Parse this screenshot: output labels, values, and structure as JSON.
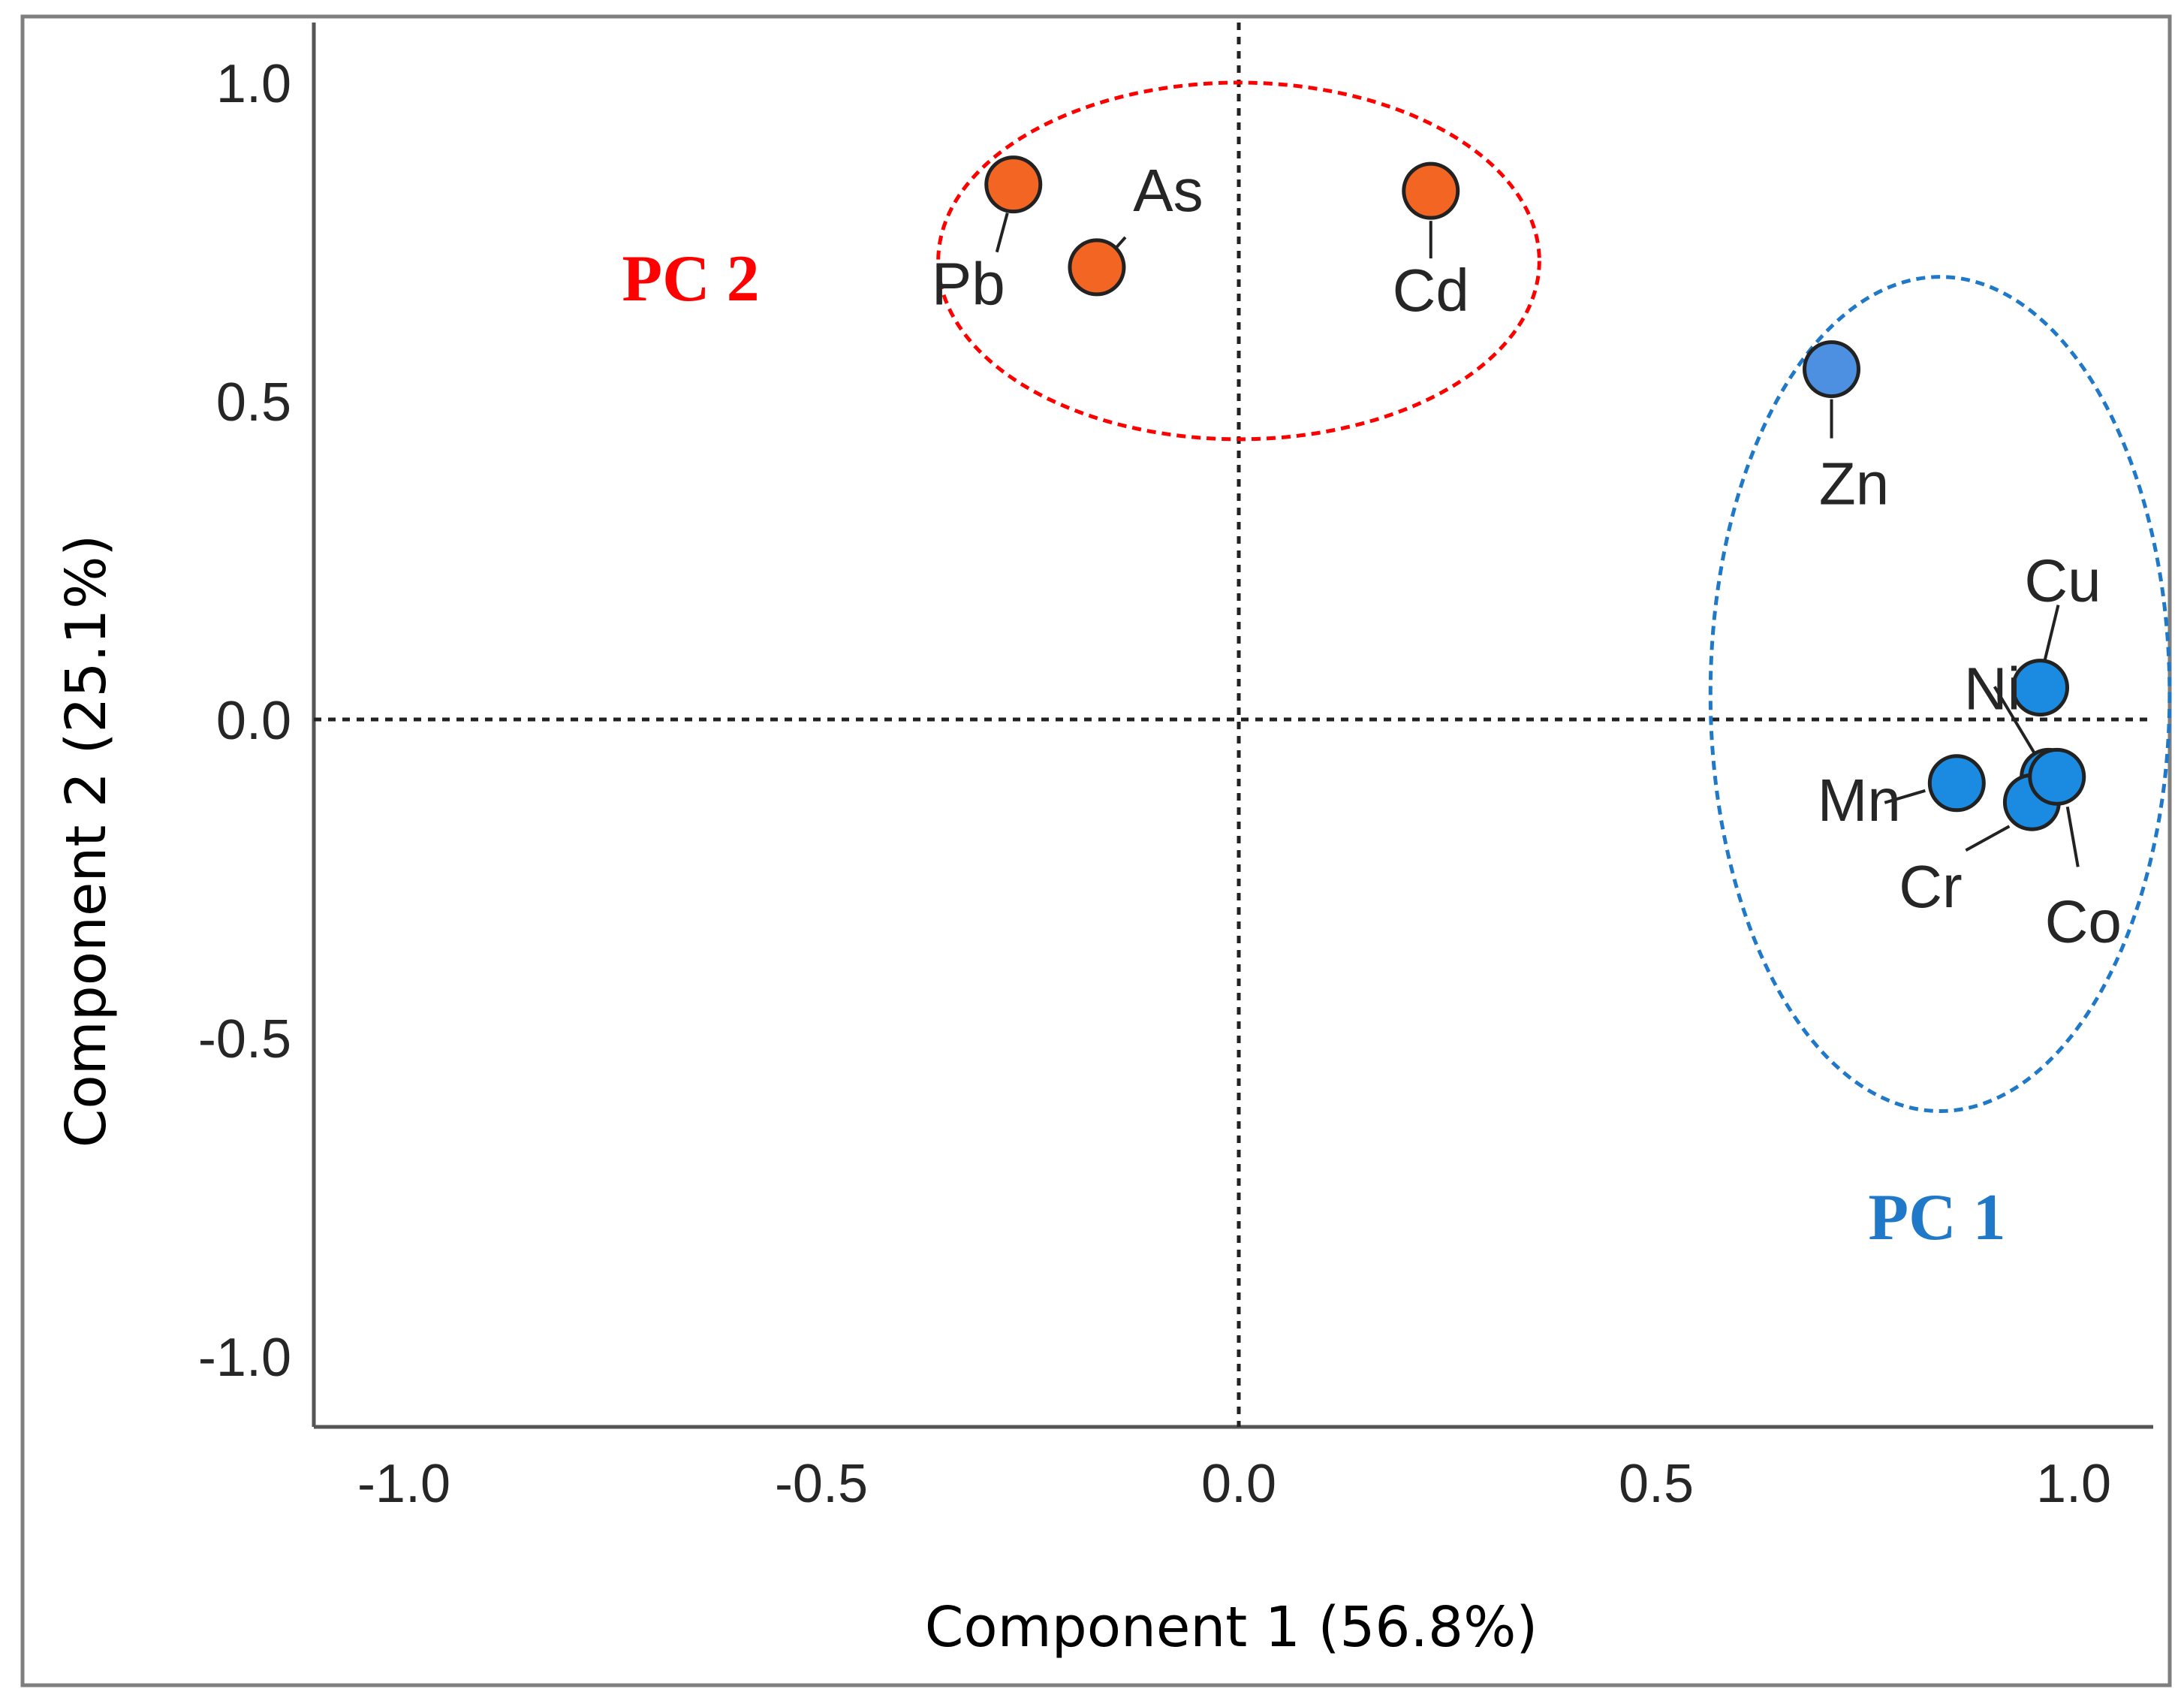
{
  "chart_data": {
    "type": "scatter",
    "title": "",
    "xlabel": "Component 1 (56.8%)",
    "ylabel": "Component 2 (25.1%)",
    "xlim": [
      -1.1,
      1.1
    ],
    "ylim": [
      -1.1,
      1.1
    ],
    "xticks": [
      {
        "value": -1.0,
        "label": "-1.0"
      },
      {
        "value": -0.5,
        "label": "-0.5"
      },
      {
        "value": 0.0,
        "label": "0.0"
      },
      {
        "value": 0.5,
        "label": "0.5"
      },
      {
        "value": 1.0,
        "label": "1.0"
      }
    ],
    "yticks": [
      {
        "value": 1.0,
        "label": "1.0"
      },
      {
        "value": 0.5,
        "label": "0.5"
      },
      {
        "value": 0.0,
        "label": "0.0"
      },
      {
        "value": -0.5,
        "label": "-0.5"
      },
      {
        "value": -1.0,
        "label": "-1.0"
      }
    ],
    "reference_lines": {
      "x": 0.0,
      "y": 0.0
    },
    "grid": false,
    "points": [
      {
        "label": "Pb",
        "x": -0.27,
        "y": 0.84,
        "group": "PC 2"
      },
      {
        "label": "As",
        "x": -0.17,
        "y": 0.71,
        "group": "PC 2"
      },
      {
        "label": "Cd",
        "x": 0.23,
        "y": 0.83,
        "group": "PC 2"
      },
      {
        "label": "Zn",
        "x": 0.71,
        "y": 0.55,
        "group": "PC 1"
      },
      {
        "label": "Cu",
        "x": 0.96,
        "y": 0.05,
        "group": "PC 1"
      },
      {
        "label": "Ni",
        "x": 0.97,
        "y": -0.09,
        "group": "PC 1"
      },
      {
        "label": "Mn",
        "x": 0.86,
        "y": -0.1,
        "group": "PC 1"
      },
      {
        "label": "Cr",
        "x": 0.95,
        "y": -0.13,
        "group": "PC 1"
      },
      {
        "label": "Co",
        "x": 0.98,
        "y": -0.09,
        "group": "PC 1"
      }
    ],
    "groups": [
      {
        "name": "PC 2",
        "color": "#ff0000",
        "point_color": "#f26522",
        "ellipse": {
          "cx": 0.0,
          "cy": 0.72,
          "rx": 0.36,
          "ry": 0.28
        }
      },
      {
        "name": "PC 1",
        "color": "#1f78c8",
        "point_color": "#1a8be0",
        "ellipse": {
          "cx": 0.84,
          "cy": 0.04,
          "rx": 0.275,
          "ry": 0.655
        }
      }
    ],
    "zn_point_color": "#4d8fe0"
  }
}
